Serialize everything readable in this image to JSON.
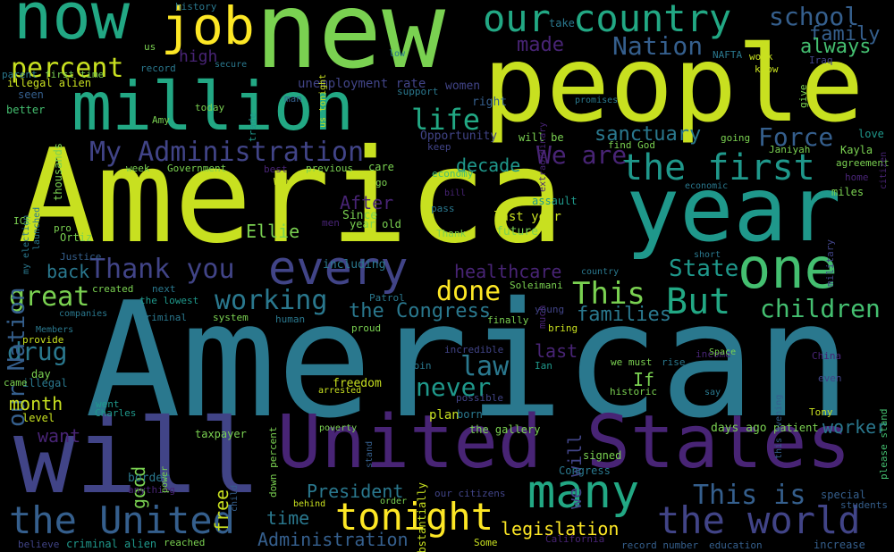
{
  "palette": {
    "background": "#000000",
    "yellow_green": "#c8e020",
    "light_green": "#7ad151",
    "green": "#44bf70",
    "teal": "#22a884",
    "cyan": "#1f988b",
    "blue_teal": "#2a788e",
    "blue": "#355f8d",
    "indigo": "#414487",
    "purple": "#482475",
    "deep_purple": "#440154",
    "yellow": "#fde725"
  },
  "words": [
    "American",
    "America",
    "new",
    "people",
    "year",
    "will",
    "United States",
    "now",
    "million",
    "one",
    "job",
    "our country",
    "the first",
    "every",
    "many",
    "the world",
    "tonight",
    "the United",
    "Thank you",
    "My Administration",
    "percent",
    "children",
    "school",
    "Nation",
    "great",
    "life",
    "working",
    "But",
    "This",
    "Force",
    "We are",
    "drug",
    "law",
    "never",
    "done",
    "decade",
    "sanctuary",
    "family",
    "always",
    "our Nation",
    "State",
    "healthcare",
    "the Congress",
    "families",
    "This is",
    "worker",
    "back",
    "made",
    "After",
    "Ellie",
    "President",
    "legislation",
    "Administration",
    "month",
    "want",
    "good",
    "free",
    "we will",
    "last",
    "If",
    "time",
    "high",
    "unemployment rate",
    "support",
    "women",
    "right",
    "Opportunity",
    "will be",
    "last year",
    "including",
    "year old",
    "Since",
    "future",
    "Thank",
    "plan",
    "born",
    "the gallery",
    "days ago",
    "patient",
    "signed",
    "Congress",
    "special",
    "students",
    "increase",
    "record number",
    "education",
    "California",
    "Some",
    "our citizens",
    "order",
    "behind",
    "anything",
    "border",
    "taxpayer",
    "child",
    "power",
    "criminal alien",
    "reached",
    "believe",
    "Charles",
    "went",
    "level",
    "illegal",
    "came",
    "day",
    "provide",
    "Members",
    "companies",
    "created",
    "next",
    "the lowest",
    "criminal",
    "system",
    "human",
    "proud",
    "finally",
    "bring",
    "much",
    "young",
    "Patrol",
    "Soleimani",
    "country",
    "short",
    "income",
    "Space",
    "rise",
    "we must",
    "Ian",
    "incredible",
    "join",
    "freedom",
    "arrested",
    "possible",
    "substantially",
    "stand",
    "poverty",
    "down percent",
    "historic",
    "say",
    "Tony",
    "China",
    "even",
    "please stand",
    "this evening",
    "military",
    "assault",
    "pass",
    "bill",
    "men",
    "go",
    "care",
    "economy",
    "keep",
    "previous",
    "best",
    "War",
    "Government",
    "week",
    "launched",
    "my election",
    "Justice",
    "Ortiz",
    "pro",
    "ICE",
    "seen",
    "better",
    "thousands",
    "illegal alien",
    "first time",
    "parent",
    "us",
    "record",
    "history",
    "secure",
    "us tonight",
    "trade",
    "man",
    "today",
    "Amy",
    "low",
    "take",
    "extraordinary",
    "promises",
    "find God",
    "going",
    "Janiyah",
    "Kayla",
    "agreement",
    "home",
    "miles",
    "economic",
    "love",
    "citizen",
    "give",
    "Iraq",
    "work",
    "know",
    "NAFTA"
  ]
}
